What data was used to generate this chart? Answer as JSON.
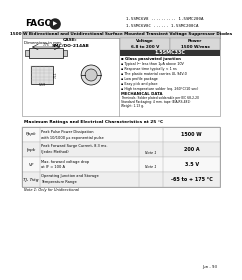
{
  "page_bg": "#ffffff",
  "brand": "FAGOR",
  "part_line1": "1.5SMC6V8 .......... 1.5SMC200A",
  "part_line2": "1.5SMC6V8C ...... 1.5SMC200CA",
  "title_banner": "1500 W Bidirectional and Unidirectional Surface Mounted Transient Voltage Suppressor Diodes",
  "case_label": "CASE:\nSMC/DO-214AB",
  "dim_label": "Dimensions in mm.",
  "voltage_label": "Voltage\n6.8 to 200 V",
  "power_label": "Power\n1500 W/max",
  "highlight_text": "1.5SMC33C",
  "features_title": "Glass passivated junction",
  "features": [
    "Typical Iᵈᵈ less than 1μA above 10V",
    "Response time typically < 1 ns",
    "The plastic material carries UL 94V-0",
    "Low profile package",
    "Easy pick and place",
    "High temperature solder (eq. 260°C/10 sec)"
  ],
  "mech_title": "MECHANICAL DATA",
  "mech_lines": [
    "Terminals: Solder plated solderable per IEC 68-2-20",
    "Standard Packaging: 4 mm. tape (EIA-RS-481)",
    "Weight: 1.13 g."
  ],
  "table_title": "Maximum Ratings and Electrical Characteristics at 25 °C",
  "table_rows": [
    {
      "sym": "Pppk",
      "desc1": "Peak Pulse Power Dissipation",
      "desc2": "with 10/1000 μs exponential pulse",
      "note": "",
      "val": "1500 W"
    },
    {
      "sym": "Ippk",
      "desc1": "Peak Forward Surge Current, 8.3 ms.",
      "desc2": "(Jedec Method)",
      "note": "Note 1",
      "val": "200 A"
    },
    {
      "sym": "VF",
      "desc1": "Max. forward voltage drop",
      "desc2": "at IF = 100 A",
      "note": "Note 1",
      "val": "3.5 V"
    },
    {
      "sym": "TJ, Tstg",
      "desc1": "Operating Junction and Storage",
      "desc2": "Temperature Range",
      "note": "",
      "val": "-65 to + 175 °C"
    }
  ],
  "note_text": "Note 1: Only for Unidirectional",
  "footer": "Jun - 93",
  "gray_light": "#e0e0e0",
  "gray_mid": "#c8c8c8",
  "gray_dark": "#404040",
  "border": "#888888",
  "row_bg1": "#f8f8f8",
  "row_bg2": "#eeeeee"
}
